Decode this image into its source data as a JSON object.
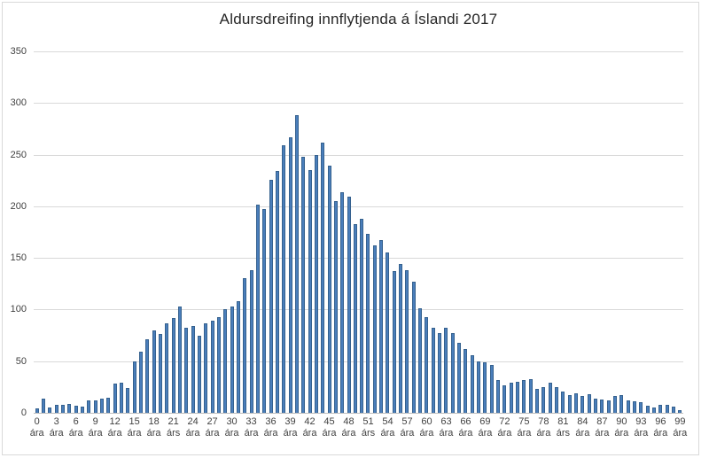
{
  "chart_data": {
    "type": "bar",
    "title": "Aldursdreifing innflytjenda á Íslandi 2017",
    "xlabel": "",
    "ylabel": "",
    "ylim": [
      0,
      350
    ],
    "y_ticks": [
      0,
      50,
      100,
      150,
      200,
      250,
      300,
      350
    ],
    "grid": "horizontal",
    "legend": "none",
    "bar_color": "#4a7ebb",
    "bar_border_color": "#35618e",
    "gridline_color": "#d9d9d9",
    "axis_line_color": "#bfbfbf",
    "label_color": "#404040",
    "categories_note": "ages 0-99, axis labeled every 3 years",
    "x": [
      0,
      1,
      2,
      3,
      4,
      5,
      6,
      7,
      8,
      9,
      10,
      11,
      12,
      13,
      14,
      15,
      16,
      17,
      18,
      19,
      20,
      21,
      22,
      23,
      24,
      25,
      26,
      27,
      28,
      29,
      30,
      31,
      32,
      33,
      34,
      35,
      36,
      37,
      38,
      39,
      40,
      41,
      42,
      43,
      44,
      45,
      46,
      47,
      48,
      49,
      50,
      51,
      52,
      53,
      54,
      55,
      56,
      57,
      58,
      59,
      60,
      61,
      62,
      63,
      64,
      65,
      66,
      67,
      68,
      69,
      70,
      71,
      72,
      73,
      74,
      75,
      76,
      77,
      78,
      79,
      80,
      81,
      82,
      83,
      84,
      85,
      86,
      87,
      88,
      89,
      90,
      91,
      92,
      93,
      94,
      95,
      96,
      97,
      98,
      99
    ],
    "values": [
      4,
      14,
      5,
      8,
      8,
      9,
      7,
      6,
      12,
      12,
      14,
      15,
      28,
      29,
      24,
      50,
      59,
      71,
      80,
      76,
      87,
      92,
      103,
      82,
      84,
      75,
      87,
      89,
      93,
      100,
      103,
      108,
      130,
      138,
      202,
      197,
      226,
      234,
      259,
      267,
      288,
      248,
      235,
      250,
      262,
      239,
      205,
      214,
      209,
      183,
      188,
      173,
      162,
      167,
      155,
      137,
      144,
      138,
      127,
      101,
      93,
      82,
      77,
      82,
      77,
      68,
      62,
      56,
      50,
      49,
      46,
      32,
      27,
      29,
      30,
      32,
      33,
      23,
      25,
      29,
      25,
      21,
      17,
      19,
      16,
      18,
      14,
      13,
      12,
      16,
      17,
      12,
      11,
      10,
      7,
      5,
      8,
      8,
      6,
      3
    ],
    "x_tick_labels": [
      {
        "n": "0",
        "s": "ára"
      },
      {
        "n": "3",
        "s": "ára"
      },
      {
        "n": "6",
        "s": "ára"
      },
      {
        "n": "9",
        "s": "ára"
      },
      {
        "n": "12",
        "s": "ára"
      },
      {
        "n": "15",
        "s": "ára"
      },
      {
        "n": "18",
        "s": "ára"
      },
      {
        "n": "21",
        "s": "árs"
      },
      {
        "n": "24",
        "s": "ára"
      },
      {
        "n": "27",
        "s": "ára"
      },
      {
        "n": "30",
        "s": "ára"
      },
      {
        "n": "33",
        "s": "ára"
      },
      {
        "n": "36",
        "s": "ára"
      },
      {
        "n": "39",
        "s": "ára"
      },
      {
        "n": "42",
        "s": "ára"
      },
      {
        "n": "45",
        "s": "ára"
      },
      {
        "n": "48",
        "s": "ára"
      },
      {
        "n": "51",
        "s": "árs"
      },
      {
        "n": "54",
        "s": "ára"
      },
      {
        "n": "57",
        "s": "ára"
      },
      {
        "n": "60",
        "s": "ára"
      },
      {
        "n": "63",
        "s": "ára"
      },
      {
        "n": "66",
        "s": "ára"
      },
      {
        "n": "69",
        "s": "ára"
      },
      {
        "n": "72",
        "s": "ára"
      },
      {
        "n": "75",
        "s": "ára"
      },
      {
        "n": "78",
        "s": "ára"
      },
      {
        "n": "81",
        "s": "árs"
      },
      {
        "n": "84",
        "s": "ára"
      },
      {
        "n": "87",
        "s": "ára"
      },
      {
        "n": "90",
        "s": "ára"
      },
      {
        "n": "93",
        "s": "ára"
      },
      {
        "n": "96",
        "s": "ára"
      },
      {
        "n": "99",
        "s": "ára"
      }
    ]
  }
}
